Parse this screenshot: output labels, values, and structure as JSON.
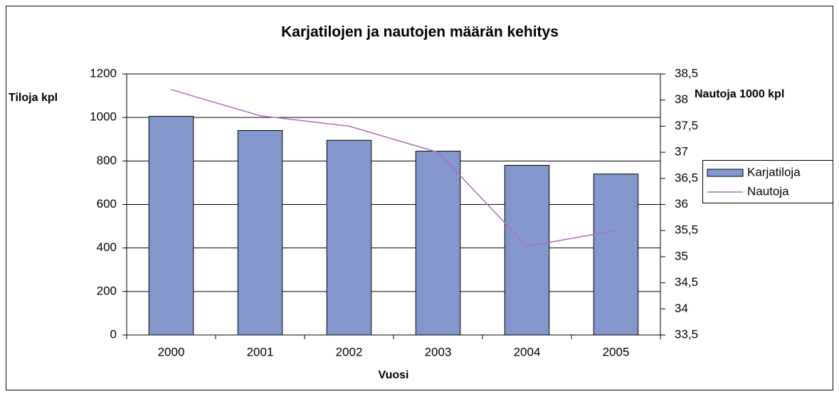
{
  "chart_data": {
    "type": "bar",
    "title": "Karjatilojen ja nautojen määrän kehitys",
    "x_label": "Vuosi",
    "y_label": "Tiloja kpl",
    "y2_label": "Nautoja 1000 kpl",
    "categories": [
      "2000",
      "2001",
      "2002",
      "2003",
      "2004",
      "2005"
    ],
    "series": [
      {
        "name": "Karjatiloja",
        "type": "bar",
        "color": "#8497cc",
        "values": [
          1005,
          940,
          895,
          845,
          780,
          740
        ]
      },
      {
        "name": "Nautoja",
        "type": "line",
        "axis": "y2",
        "color": "#b06cc0",
        "values": [
          38.2,
          37.7,
          37.5,
          37.0,
          35.2,
          35.5
        ]
      }
    ],
    "ylim": [
      0,
      1200
    ],
    "yticks": [
      0,
      200,
      400,
      600,
      800,
      1000,
      1200
    ],
    "y2lim": [
      33.5,
      38.5
    ],
    "y2ticks": [
      {
        "value": 33.5,
        "label": "33,5"
      },
      34,
      {
        "value": 34.5,
        "label": "34,5"
      },
      35,
      {
        "value": 35.5,
        "label": "35,5"
      },
      36,
      {
        "value": 36.5,
        "label": "36,5"
      },
      37,
      {
        "value": 37.5,
        "label": "37,5"
      },
      38,
      {
        "value": 38.5,
        "label": "38,5"
      }
    ],
    "grid": true,
    "legend": "right"
  }
}
